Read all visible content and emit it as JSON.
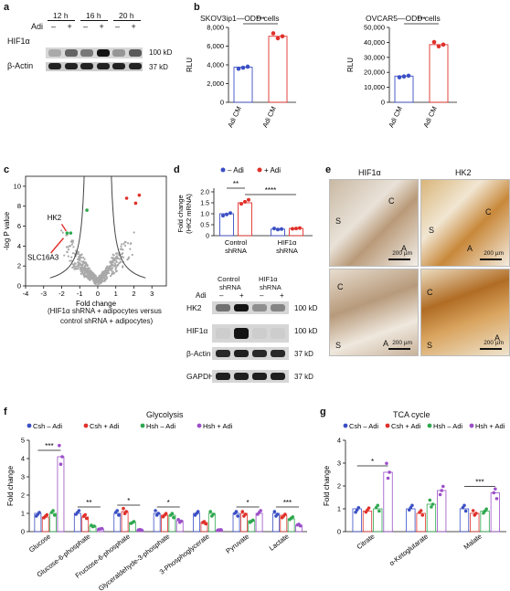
{
  "panel_a": {
    "label": "a",
    "times": [
      "12 h",
      "16 h",
      "20 h"
    ],
    "adi_row_label": "Adi",
    "adi_signs": [
      "–",
      "+",
      "–",
      "+",
      "–",
      "+"
    ],
    "rows": [
      {
        "name": "HIF1α",
        "size": "100 kD"
      },
      {
        "name": "β-Actin",
        "size": "37 kD"
      }
    ],
    "hif1a_levels": [
      0.2,
      0.55,
      0.45,
      0.95,
      0.3,
      0.6
    ]
  },
  "panel_b": {
    "label": "b",
    "titles": [
      "SKOV3ip1—ODD cells",
      "OVCAR5—ODD cells"
    ],
    "ylabel": "RLU",
    "xcats": [
      "– Adi CM",
      "+ Adi CM"
    ],
    "sig": "***",
    "colors": {
      "minus": "#3b4fc4",
      "plus": "#e0302a"
    }
  },
  "panel_c": {
    "label": "c",
    "ylabel": "-log P value",
    "xlabel": "Fold change",
    "caption_line1": "(HIF1α shRNA + adipocytes versus",
    "caption_line2": "control shRNA + adipocytes)",
    "gene_hk2": "HK2",
    "gene_slc": "SLC16A3",
    "xticks": [
      "-4",
      "-3",
      "-2",
      "-1",
      "0",
      "1",
      "2",
      "3"
    ],
    "yticks": [
      "0",
      "2",
      "4",
      "6",
      "8",
      "10"
    ]
  },
  "panel_d": {
    "label": "d",
    "legend": [
      "– Adi",
      "+ Adi"
    ],
    "ylabel1": "Fold change",
    "ylabel2": "(HK2 mRNA)",
    "sig_top": "**",
    "sig_bottom": "****",
    "group1_l1": "Control",
    "group1_l2": "shRNA",
    "group2_l1": "HIF1α",
    "group2_l2": "shRNA",
    "yticks": [
      "0",
      "0.5",
      "1.0",
      "1.5",
      "2.0"
    ],
    "blot_adi": "Adi",
    "blot_signs": [
      "–",
      "+",
      "–",
      "+"
    ],
    "blot_rows": [
      {
        "name": "HK2",
        "size": "100 kD"
      },
      {
        "name": "HIF1α",
        "size": "100 kD"
      },
      {
        "name": "β-Actin",
        "size": "37 kD"
      },
      {
        "name": "GAPDH",
        "size": "37 kD"
      }
    ]
  },
  "panel_e": {
    "label": "e",
    "col_titles": [
      "HIF1α",
      "HK2"
    ],
    "region_labels": [
      "S",
      "C",
      "A"
    ],
    "scale": "200 µm"
  },
  "panel_f": {
    "label": "f",
    "title": "Glycolysis",
    "ylabel": "Fold change",
    "legend": [
      "Csh – Adi",
      "Csh + Adi",
      "Hsh – Adi",
      "Hsh + Adi"
    ],
    "colors": [
      "#3b4fc4",
      "#e0302a",
      "#2fa84f",
      "#9b4fc8"
    ],
    "yticks": [
      "0",
      "1",
      "2",
      "3",
      "4",
      "5"
    ]
  },
  "panel_g": {
    "label": "g",
    "title": "TCA cycle",
    "ylabel": "Fold change",
    "legend": [
      "Csh – Adi",
      "Csh + Adi",
      "Hsh – Adi",
      "Hsh + Adi"
    ],
    "colors": [
      "#3b4fc4",
      "#e0302a",
      "#2fa84f",
      "#9b4fc8"
    ],
    "yticks": [
      "0",
      "1",
      "2",
      "3",
      "4"
    ]
  },
  "chart_data": [
    {
      "type": "bar",
      "panel": "b-left",
      "title": "SKOV3ip1—ODD cells",
      "ylabel": "RLU",
      "categories": [
        "– Adi CM",
        "+ Adi CM"
      ],
      "values": [
        3750,
        7050
      ],
      "ylim": [
        0,
        8000
      ],
      "yticks": [
        "0",
        "2,000",
        "4,000",
        "6,000",
        "8,000"
      ],
      "significance": "***"
    },
    {
      "type": "bar",
      "panel": "b-right",
      "title": "OVCAR5—ODD cells",
      "ylabel": "RLU",
      "categories": [
        "– Adi CM",
        "+ Adi CM"
      ],
      "values": [
        17500,
        38500
      ],
      "ylim": [
        0,
        50000
      ],
      "yticks": [
        "0",
        "10,000",
        "20,000",
        "30,000",
        "40,000",
        "50,000"
      ],
      "significance": "***"
    },
    {
      "type": "bar",
      "panel": "d",
      "ylabel": "Fold change (HK2 mRNA)",
      "categories": [
        "Control shRNA",
        "HIF1α shRNA"
      ],
      "series": [
        {
          "name": "– Adi",
          "values": [
            1.0,
            0.3
          ]
        },
        {
          "name": "+ Adi",
          "values": [
            1.5,
            0.33
          ]
        }
      ],
      "ylim": [
        0,
        2.0
      ]
    },
    {
      "type": "bar",
      "panel": "f",
      "title": "Glycolysis",
      "ylabel": "Fold change",
      "categories": [
        "Glucose",
        "Glucose-6-phosphate",
        "Fructose-6-phosphate",
        "Glyceraldehyde-3-phosphate",
        "3-Phosphoglycerate",
        "Pyruvate",
        "Lactate"
      ],
      "series": [
        {
          "name": "Csh – Adi",
          "values": [
            1.0,
            1.0,
            1.0,
            1.0,
            1.0,
            1.0,
            1.0
          ]
        },
        {
          "name": "Csh + Adi",
          "values": [
            0.8,
            0.8,
            1.1,
            0.9,
            0.5,
            1.0,
            0.9
          ]
        },
        {
          "name": "Hsh – Adi",
          "values": [
            1.0,
            0.3,
            0.5,
            0.9,
            1.0,
            0.6,
            0.7
          ]
        },
        {
          "name": "Hsh + Adi",
          "values": [
            4.1,
            0.15,
            0.1,
            0.6,
            0.1,
            1.0,
            0.35
          ]
        }
      ],
      "significance": [
        "***",
        "**",
        "*",
        "*",
        "",
        "*",
        "***"
      ],
      "ylim": [
        0,
        5
      ]
    },
    {
      "type": "bar",
      "panel": "g",
      "title": "TCA cycle",
      "ylabel": "Fold change",
      "categories": [
        "Citrate",
        "α-Ketoglutarate",
        "Malate"
      ],
      "series": [
        {
          "name": "Csh – Adi",
          "values": [
            1.0,
            1.0,
            1.0
          ]
        },
        {
          "name": "Csh + Adi",
          "values": [
            0.9,
            0.8,
            0.8
          ]
        },
        {
          "name": "Hsh – Adi",
          "values": [
            1.0,
            1.2,
            0.9
          ]
        },
        {
          "name": "Hsh + Adi",
          "values": [
            2.6,
            1.8,
            1.7
          ]
        }
      ],
      "significance": [
        "*",
        "",
        "***"
      ],
      "ylim": [
        0,
        4
      ]
    }
  ]
}
